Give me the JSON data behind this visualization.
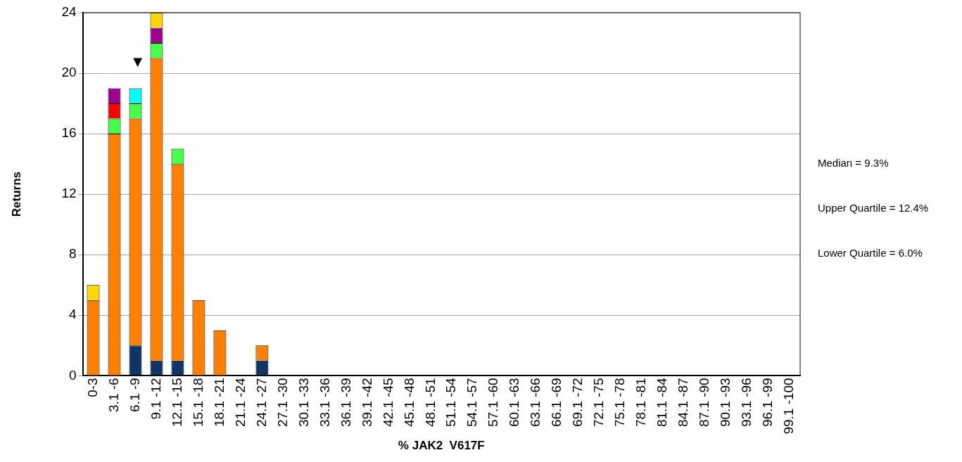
{
  "chart_data": {
    "type": "bar",
    "stacked": true,
    "xlabel": "% JAK2  V617F",
    "ylabel": "Returns",
    "categories": [
      "0-3",
      "3.1 -6",
      "6.1 -9",
      "9.1 -12",
      "12.1 -15",
      "15.1 -18",
      "18.1 -21",
      "21.1 -24",
      "24.1 -27",
      "27.1 -30",
      "30.1 -33",
      "33.1 -36",
      "36.1 -39",
      "39.1 -42",
      "42.1 -45",
      "45.1 -48",
      "48.1 -51",
      "51.1 -54",
      "54.1 -57",
      "57.1 -60",
      "60.1 -63",
      "63.1 -66",
      "66.1 -69",
      "69.1 -72",
      "72.1 -75",
      "75.1 -78",
      "78.1 -81",
      "81.1 -84",
      "84.1 -87",
      "87.1 -90",
      "90.1 -93",
      "93.1 -96",
      "96.1 -99",
      "99.1 -100"
    ],
    "series": [
      {
        "color": "#0f3566",
        "values": [
          0,
          0,
          2,
          1,
          1,
          0,
          0,
          0,
          1,
          0,
          0,
          0,
          0,
          0,
          0,
          0,
          0,
          0,
          0,
          0,
          0,
          0,
          0,
          0,
          0,
          0,
          0,
          0,
          0,
          0,
          0,
          0,
          0,
          0
        ]
      },
      {
        "color": "#ff7f00",
        "values": [
          5,
          16,
          15,
          20,
          13,
          5,
          3,
          0,
          1,
          0,
          0,
          0,
          0,
          0,
          0,
          0,
          0,
          0,
          0,
          0,
          0,
          0,
          0,
          0,
          0,
          0,
          0,
          0,
          0,
          0,
          0,
          0,
          0,
          0
        ]
      },
      {
        "color": "#47ff47",
        "values": [
          0,
          1,
          1,
          1,
          1,
          0,
          0,
          0,
          0,
          0,
          0,
          0,
          0,
          0,
          0,
          0,
          0,
          0,
          0,
          0,
          0,
          0,
          0,
          0,
          0,
          0,
          0,
          0,
          0,
          0,
          0,
          0,
          0,
          0
        ]
      },
      {
        "color": "#ff0000",
        "values": [
          0,
          1,
          0,
          0,
          0,
          0,
          0,
          0,
          0,
          0,
          0,
          0,
          0,
          0,
          0,
          0,
          0,
          0,
          0,
          0,
          0,
          0,
          0,
          0,
          0,
          0,
          0,
          0,
          0,
          0,
          0,
          0,
          0,
          0
        ]
      },
      {
        "color": "#00ffff",
        "values": [
          0,
          0,
          1,
          0,
          0,
          0,
          0,
          0,
          0,
          0,
          0,
          0,
          0,
          0,
          0,
          0,
          0,
          0,
          0,
          0,
          0,
          0,
          0,
          0,
          0,
          0,
          0,
          0,
          0,
          0,
          0,
          0,
          0,
          0
        ]
      },
      {
        "color": "#9c008c",
        "values": [
          0,
          1,
          0,
          1,
          0,
          0,
          0,
          0,
          0,
          0,
          0,
          0,
          0,
          0,
          0,
          0,
          0,
          0,
          0,
          0,
          0,
          0,
          0,
          0,
          0,
          0,
          0,
          0,
          0,
          0,
          0,
          0,
          0,
          0
        ]
      },
      {
        "color": "#ffd700",
        "values": [
          1,
          0,
          0,
          1,
          0,
          0,
          0,
          0,
          0,
          0,
          0,
          0,
          0,
          0,
          0,
          0,
          0,
          0,
          0,
          0,
          0,
          0,
          0,
          0,
          0,
          0,
          0,
          0,
          0,
          0,
          0,
          0,
          0,
          0
        ]
      }
    ],
    "ylim": [
      0,
      24
    ],
    "yticks": [
      0,
      4,
      8,
      12,
      16,
      20,
      24
    ],
    "grid": "y",
    "legend": false,
    "annotations": [
      "▼",
      "Median = 9.3%",
      "Upper Quartile = 12.4%",
      "Lower Quartile = 6.0%"
    ]
  }
}
